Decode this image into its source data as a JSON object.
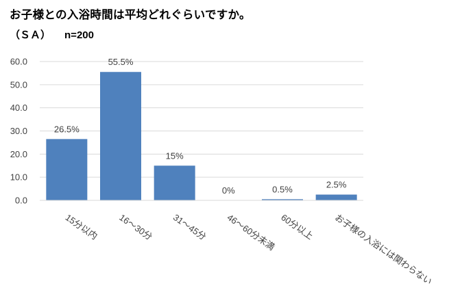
{
  "title": "お子様との入浴時間は平均どれぐらいですか。",
  "subtitle": {
    "sa": "（ＳＡ）",
    "n": "n=200"
  },
  "chart_data": {
    "type": "bar",
    "categories": [
      "15分以内",
      "16～30分",
      "31～45分",
      "46～60分未満",
      "60分以上",
      "お子様の入浴には関わらない"
    ],
    "values": [
      26.5,
      55.5,
      15,
      0,
      0.5,
      2.5
    ],
    "data_labels": [
      "26.5%",
      "55.5%",
      "15%",
      "0%",
      "0.5%",
      "2.5%"
    ],
    "title": "お子様との入浴時間は平均どれぐらいですか。",
    "xlabel": "",
    "ylabel": "",
    "ylim": [
      0,
      60
    ],
    "ytick_values": [
      0,
      10,
      20,
      30,
      40,
      50,
      60
    ],
    "ytick_labels": [
      "0.0",
      "10.0",
      "20.0",
      "30.0",
      "40.0",
      "50.0",
      "60.0"
    ],
    "grid": true,
    "legend": "none",
    "bar_color": "#4F81BD",
    "grid_color": "#D9D9D9",
    "x_label_rotation": 35
  }
}
